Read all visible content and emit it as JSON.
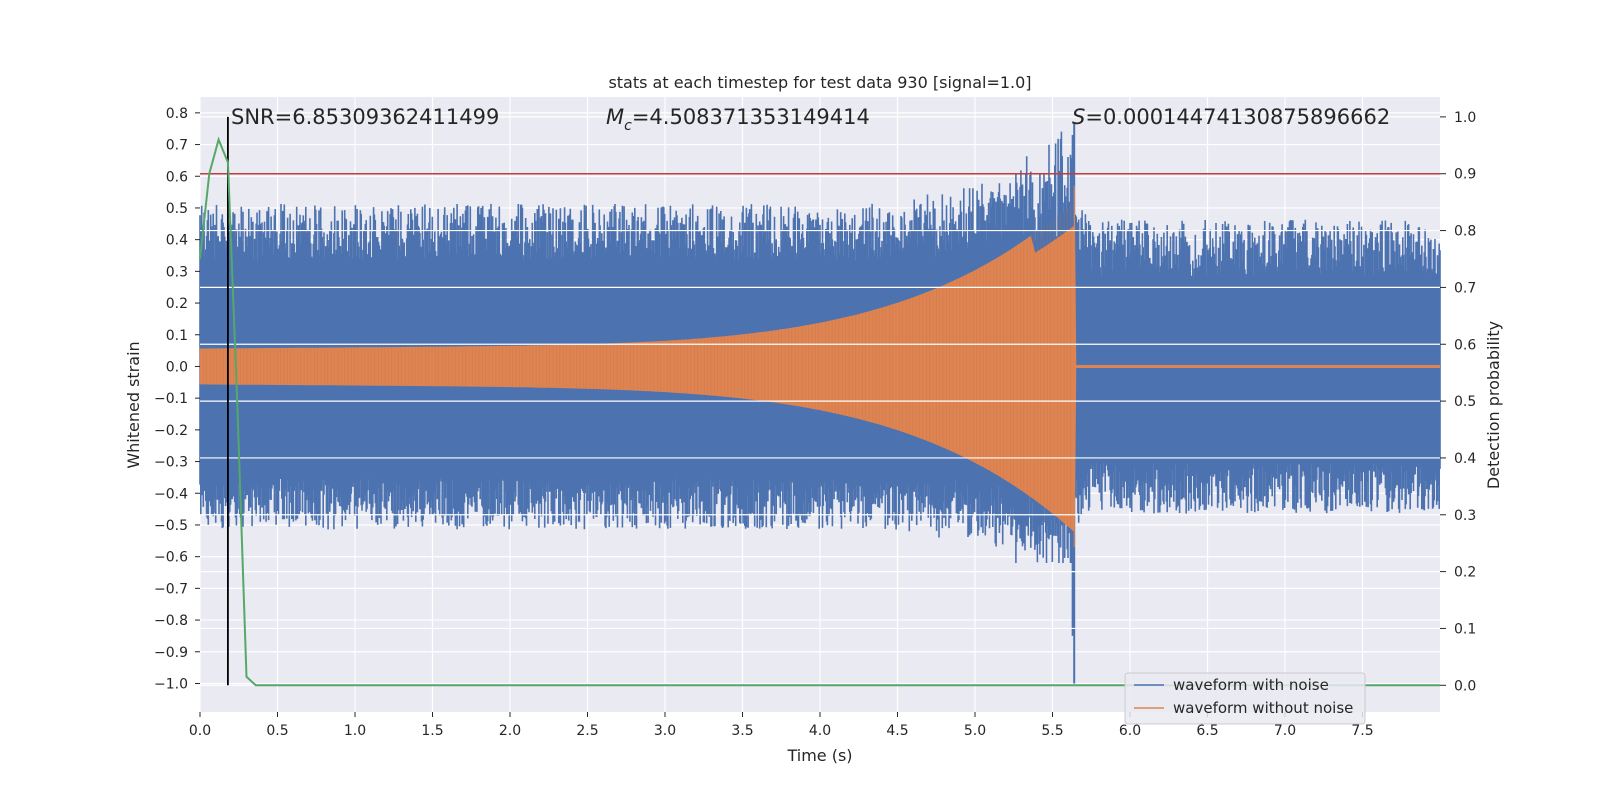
{
  "chart_data": {
    "type": "line",
    "title": "stats at each timestep for test data 930 [signal=1.0]",
    "xlabel": "Time (s)",
    "ylabel": "Whitened strain",
    "y2label": "Detection probability",
    "xlim": [
      0.0,
      8.0
    ],
    "ylim": [
      -1.09,
      0.85
    ],
    "y2lim": [
      -0.047,
      1.035
    ],
    "x_ticks": [
      0.0,
      0.5,
      1.0,
      1.5,
      2.0,
      2.5,
      3.0,
      3.5,
      4.0,
      4.5,
      5.0,
      5.5,
      6.0,
      6.5,
      7.0,
      7.5
    ],
    "x_tick_labels": [
      "0.0",
      "0.5",
      "1.0",
      "1.5",
      "2.0",
      "2.5",
      "3.0",
      "3.5",
      "4.0",
      "4.5",
      "5.0",
      "5.5",
      "6.0",
      "6.5",
      "7.0",
      "7.5"
    ],
    "y_ticks": [
      0.8,
      0.7,
      0.6,
      0.5,
      0.4,
      0.3,
      0.2,
      0.1,
      0.0,
      -0.1,
      -0.2,
      -0.3,
      -0.4,
      -0.5,
      -0.6,
      -0.7,
      -0.8,
      -0.9,
      -1.0
    ],
    "y_tick_labels": [
      "0.8",
      "0.7",
      "0.6",
      "0.5",
      "0.4",
      "0.3",
      "0.2",
      "0.1",
      "0.0",
      "−0.1",
      "−0.2",
      "−0.3",
      "−0.4",
      "−0.5",
      "−0.6",
      "−0.7",
      "−0.8",
      "−0.9",
      "−1.0"
    ],
    "y2_ticks": [
      1.0,
      0.9,
      0.8,
      0.7,
      0.6,
      0.5,
      0.4,
      0.3,
      0.2,
      0.1,
      0.0
    ],
    "y2_tick_labels": [
      "1.0",
      "0.9",
      "0.8",
      "0.7",
      "0.6",
      "0.5",
      "0.4",
      "0.3",
      "0.2",
      "0.1",
      "0.0"
    ],
    "annotations": {
      "snr": "SNR=6.85309362411499",
      "mc_symbol": "M",
      "mc_sub": "c",
      "mc_value": "=4.508371353149414",
      "s_symbol": "S",
      "s_value": "=0.00014474130875896662"
    },
    "threshold": {
      "axis": "y2",
      "value": 0.9,
      "color": "#c03d3e"
    },
    "marker_line": {
      "x": 0.18,
      "y2_from": 0.0,
      "y2_to": 1.0,
      "color": "#000000"
    },
    "series": [
      {
        "name": "waveform with noise",
        "axis": "y",
        "color": "#4c72b0",
        "description": "whitened noisy strain, band approx ±0.45 with spikes up to 0.77 near merger and down to -1.0 at x≈5.64",
        "x_range": [
          0.0,
          8.0
        ],
        "band_half_width": 0.45,
        "merger_time": 5.64,
        "max_value": 0.77,
        "min_value": -1.0
      },
      {
        "name": "waveform without noise",
        "axis": "y",
        "color": "#dd8452",
        "description": "clean chirp, amplitude ~0.055 at start growing to ~0.5 at merger (x≈5.64), then flat at 0.0",
        "x_range": [
          0.0,
          8.0
        ],
        "start_amplitude": 0.055,
        "merger_amplitude": 0.5,
        "merger_time": 5.64,
        "post_merger_value": 0.0
      },
      {
        "name": "detection probability",
        "axis": "y2",
        "color": "#55a868",
        "x": [
          0.0,
          0.06,
          0.12,
          0.18,
          0.24,
          0.3,
          0.36,
          0.42,
          8.0
        ],
        "values": [
          0.75,
          0.9,
          0.96,
          0.92,
          0.5,
          0.015,
          0.0,
          0.0,
          0.0
        ]
      }
    ],
    "legend": {
      "position": "lower-right",
      "entries": [
        {
          "label": "waveform with noise",
          "color": "#4c72b0"
        },
        {
          "label": "waveform without noise",
          "color": "#dd8452"
        }
      ]
    }
  }
}
